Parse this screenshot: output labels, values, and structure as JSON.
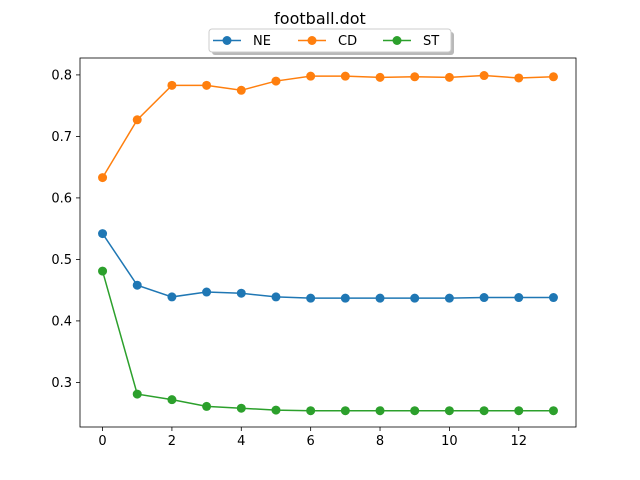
{
  "chart_data": {
    "type": "line",
    "title": "football.dot",
    "xlabel": "",
    "ylabel": "",
    "xlim": [
      -0.65,
      13.65
    ],
    "ylim": [
      0.2275,
      0.8275
    ],
    "xticks": [
      0,
      2,
      4,
      6,
      8,
      10,
      12
    ],
    "yticks": [
      0.3,
      0.4,
      0.5,
      0.6,
      0.7,
      0.8
    ],
    "legend": "top-center",
    "grid": false,
    "x": [
      0,
      1,
      2,
      3,
      4,
      5,
      6,
      7,
      8,
      9,
      10,
      11,
      12,
      13
    ],
    "series": [
      {
        "name": "NE",
        "color": "#1f77b4",
        "values": [
          0.542,
          0.458,
          0.439,
          0.447,
          0.445,
          0.439,
          0.437,
          0.437,
          0.437,
          0.437,
          0.437,
          0.438,
          0.438,
          0.438
        ]
      },
      {
        "name": "CD",
        "color": "#ff7f0e",
        "values": [
          0.633,
          0.727,
          0.783,
          0.783,
          0.775,
          0.79,
          0.798,
          0.798,
          0.796,
          0.797,
          0.796,
          0.799,
          0.795,
          0.797
        ]
      },
      {
        "name": "ST",
        "color": "#2ca02c",
        "values": [
          0.481,
          0.281,
          0.272,
          0.261,
          0.258,
          0.255,
          0.254,
          0.254,
          0.254,
          0.254,
          0.254,
          0.254,
          0.254,
          0.254
        ]
      }
    ]
  }
}
